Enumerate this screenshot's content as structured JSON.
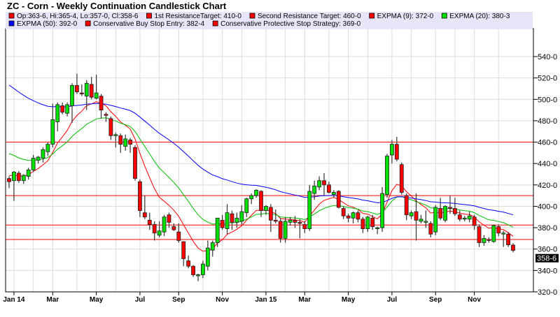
{
  "chart_data": {
    "type": "candlestick",
    "title": "ZC - Corn - Weekly Continuation Candlestick Chart",
    "ylim": [
      320,
      550
    ],
    "yticks": [
      320,
      340,
      360,
      380,
      400,
      420,
      440,
      460,
      480,
      500,
      520,
      540
    ],
    "ytick_labels": [
      "320-0",
      "340-0",
      "360-0",
      "380-0",
      "400-0",
      "420-0",
      "440-0",
      "460-0",
      "480-0",
      "500-0",
      "520-0",
      "540-0"
    ],
    "xtick_labels": [
      "Jan 14",
      "Mar",
      "May",
      "Jul",
      "Sep",
      "Nov",
      "Jan 15",
      "Mar",
      "May",
      "Jul",
      "Sep",
      "Nov"
    ],
    "grid": true,
    "legend_placement": "top",
    "last_price_label": "358-6",
    "colors": {
      "up": "#00e000",
      "down": "#ff0000",
      "ema9": "#ff0000",
      "ema20": "#00c000",
      "ema50": "#0000ff",
      "levels": "#ff0000",
      "legend_bg": "#e6e6f8",
      "tag_bg": "#000000"
    },
    "legend": [
      {
        "text": "Op:363-6, Hi:365-4, Lo:357-0, Cl:358-6",
        "color": "#ff0000"
      },
      {
        "text": "1st ResistanceTarget: 410-0",
        "color": "#ff0000"
      },
      {
        "text": "Second Resistance Target: 460-0",
        "color": "#ff0000"
      },
      {
        "text": "EXPMA (9): 372-0",
        "color": "#ff0000"
      },
      {
        "text": "EXPMA (20): 380-3",
        "color": "#00e000"
      },
      {
        "text": "EXPMA (50): 392-0",
        "color": "#0000ff"
      },
      {
        "text": "Conservative Buy Stop Entry: 382-4",
        "color": "#ff0000"
      },
      {
        "text": "Conservative Protective Stop Strategy: 369-0",
        "color": "#ff0000"
      }
    ],
    "levels": [
      {
        "name": "1st Resistance Target",
        "value": 410
      },
      {
        "name": "Second Resistance Target",
        "value": 460
      },
      {
        "name": "Conservative Buy Stop Entry",
        "value": 382.5
      },
      {
        "name": "Conservative Protective Stop Strategy",
        "value": 369
      }
    ],
    "ema_periods": [
      9,
      20,
      50
    ],
    "candles_columns": [
      "week",
      "open",
      "high",
      "low",
      "close"
    ],
    "candles": [
      [
        "2013-12-30",
        426,
        428,
        417,
        423
      ],
      [
        "2014-01-06",
        424,
        433,
        405,
        432
      ],
      [
        "2014-01-13",
        431,
        433,
        422,
        424
      ],
      [
        "2014-01-20",
        424,
        430,
        421,
        429
      ],
      [
        "2014-01-27",
        428,
        436,
        425,
        434
      ],
      [
        "2014-02-03",
        434,
        448,
        432,
        445
      ],
      [
        "2014-02-10",
        443,
        447,
        440,
        446
      ],
      [
        "2014-02-17",
        445,
        455,
        441,
        453
      ],
      [
        "2014-02-24",
        451,
        460,
        447,
        458
      ],
      [
        "2014-03-03",
        458,
        496,
        455,
        481
      ],
      [
        "2014-03-10",
        479,
        497,
        470,
        495
      ],
      [
        "2014-03-17",
        494,
        497,
        486,
        488
      ],
      [
        "2014-03-24",
        487,
        497,
        484,
        495
      ],
      [
        "2014-03-31",
        494,
        515,
        478,
        513
      ],
      [
        "2014-04-07",
        513,
        524,
        505,
        507
      ],
      [
        "2014-04-14",
        506,
        514,
        503,
        505
      ],
      [
        "2014-04-21",
        503,
        518,
        490,
        515
      ],
      [
        "2014-04-28",
        514,
        521,
        500,
        502
      ],
      [
        "2014-05-05",
        501,
        523,
        500,
        506
      ],
      [
        "2014-05-12",
        503,
        505,
        482,
        490
      ],
      [
        "2014-05-19",
        486,
        488,
        479,
        485
      ],
      [
        "2014-05-26",
        482,
        484,
        462,
        466
      ],
      [
        "2014-06-02",
        466,
        469,
        455,
        467
      ],
      [
        "2014-06-09",
        466,
        468,
        450,
        458
      ],
      [
        "2014-06-16",
        456,
        467,
        452,
        463
      ],
      [
        "2014-06-23",
        462,
        464,
        450,
        458
      ],
      [
        "2014-06-30",
        455,
        457,
        424,
        426
      ],
      [
        "2014-07-07",
        423,
        425,
        390,
        396
      ],
      [
        "2014-07-14",
        394,
        410,
        388,
        390
      ],
      [
        "2014-07-21",
        387,
        394,
        378,
        383
      ],
      [
        "2014-07-28",
        383,
        386,
        368,
        375
      ],
      [
        "2014-08-04",
        373,
        386,
        371,
        377
      ],
      [
        "2014-08-11",
        376,
        392,
        372,
        390
      ],
      [
        "2014-08-18",
        392,
        394,
        380,
        385
      ],
      [
        "2014-08-25",
        381,
        384,
        377,
        378
      ],
      [
        "2014-09-01",
        376,
        384,
        366,
        368
      ],
      [
        "2014-09-08",
        367,
        367,
        344,
        351
      ],
      [
        "2014-09-15",
        349,
        354,
        342,
        344
      ],
      [
        "2014-09-22",
        344,
        345,
        334,
        336
      ],
      [
        "2014-09-29",
        335,
        337,
        330,
        336
      ],
      [
        "2014-10-06",
        336,
        349,
        333,
        346
      ],
      [
        "2014-10-13",
        344,
        368,
        340,
        361
      ],
      [
        "2014-10-20",
        359,
        368,
        353,
        366
      ],
      [
        "2014-10-27",
        366,
        389,
        362,
        389
      ],
      [
        "2014-11-03",
        387,
        392,
        378,
        380
      ],
      [
        "2014-11-10",
        379,
        402,
        374,
        394
      ],
      [
        "2014-11-17",
        393,
        396,
        378,
        385
      ],
      [
        "2014-11-24",
        385,
        394,
        380,
        389
      ],
      [
        "2014-12-01",
        386,
        401,
        383,
        395
      ],
      [
        "2014-12-08",
        394,
        408,
        390,
        407
      ],
      [
        "2014-12-15",
        407,
        412,
        402,
        410
      ],
      [
        "2014-12-22",
        410,
        416,
        408,
        415
      ],
      [
        "2014-12-29",
        414,
        415,
        390,
        396
      ],
      [
        "2015-01-05",
        396,
        401,
        392,
        400
      ],
      [
        "2015-01-12",
        399,
        402,
        376,
        387
      ],
      [
        "2015-01-19",
        387,
        397,
        384,
        386
      ],
      [
        "2015-01-26",
        386,
        389,
        366,
        370
      ],
      [
        "2015-02-02",
        370,
        390,
        366,
        386
      ],
      [
        "2015-02-09",
        385,
        390,
        382,
        387
      ],
      [
        "2015-02-16",
        387,
        391,
        380,
        385
      ],
      [
        "2015-02-23",
        385,
        388,
        370,
        384
      ],
      [
        "2015-03-02",
        383,
        386,
        375,
        379
      ],
      [
        "2015-03-09",
        379,
        420,
        377,
        414
      ],
      [
        "2015-03-16",
        412,
        424,
        406,
        419
      ],
      [
        "2015-03-23",
        418,
        428,
        415,
        424
      ],
      [
        "2015-03-30",
        424,
        431,
        410,
        420
      ],
      [
        "2015-04-06",
        420,
        423,
        412,
        413
      ],
      [
        "2015-04-13",
        411,
        415,
        408,
        413
      ],
      [
        "2015-04-20",
        414,
        415,
        398,
        399
      ],
      [
        "2015-04-27",
        398,
        400,
        388,
        391
      ],
      [
        "2015-05-04",
        391,
        393,
        385,
        389
      ],
      [
        "2015-05-11",
        389,
        395,
        384,
        394
      ],
      [
        "2015-05-18",
        394,
        396,
        385,
        388
      ],
      [
        "2015-05-25",
        388,
        390,
        375,
        379
      ],
      [
        "2015-06-01",
        379,
        391,
        376,
        390
      ],
      [
        "2015-06-08",
        389,
        392,
        378,
        381
      ],
      [
        "2015-06-15",
        380,
        381,
        374,
        380
      ],
      [
        "2015-06-22",
        380,
        418,
        376,
        412
      ],
      [
        "2015-06-29",
        411,
        449,
        408,
        447
      ],
      [
        "2015-07-06",
        448,
        462,
        440,
        458
      ],
      [
        "2015-07-13",
        458,
        465,
        442,
        444
      ],
      [
        "2015-07-20",
        439,
        441,
        411,
        413
      ],
      [
        "2015-07-27",
        410,
        412,
        387,
        392
      ],
      [
        "2015-08-03",
        391,
        396,
        388,
        394
      ],
      [
        "2015-08-10",
        395,
        412,
        368,
        387
      ],
      [
        "2015-08-17",
        386,
        392,
        384,
        388
      ],
      [
        "2015-08-24",
        386,
        396,
        380,
        386
      ],
      [
        "2015-08-31",
        384,
        386,
        371,
        374
      ],
      [
        "2015-09-07",
        376,
        401,
        373,
        399
      ],
      [
        "2015-09-14",
        398,
        408,
        387,
        389
      ],
      [
        "2015-09-21",
        387,
        401,
        385,
        400
      ],
      [
        "2015-09-28",
        399,
        410,
        393,
        398
      ],
      [
        "2015-10-05",
        398,
        408,
        391,
        393
      ],
      [
        "2015-10-12",
        392,
        396,
        386,
        388
      ],
      [
        "2015-10-19",
        388,
        391,
        386,
        389
      ],
      [
        "2015-10-26",
        388,
        395,
        385,
        391
      ],
      [
        "2015-11-02",
        390,
        392,
        378,
        382
      ],
      [
        "2015-11-09",
        381,
        383,
        362,
        366
      ],
      [
        "2015-11-16",
        366,
        373,
        363,
        370
      ],
      [
        "2015-11-23",
        369,
        371,
        366,
        368
      ],
      [
        "2015-11-30",
        367,
        383,
        366,
        382
      ],
      [
        "2015-12-07",
        381,
        383,
        372,
        375
      ],
      [
        "2015-12-14",
        375,
        377,
        362,
        375
      ],
      [
        "2015-12-21",
        374,
        376,
        362,
        364
      ],
      [
        "2015-12-28",
        363.75,
        365.5,
        357,
        358.75
      ]
    ]
  }
}
